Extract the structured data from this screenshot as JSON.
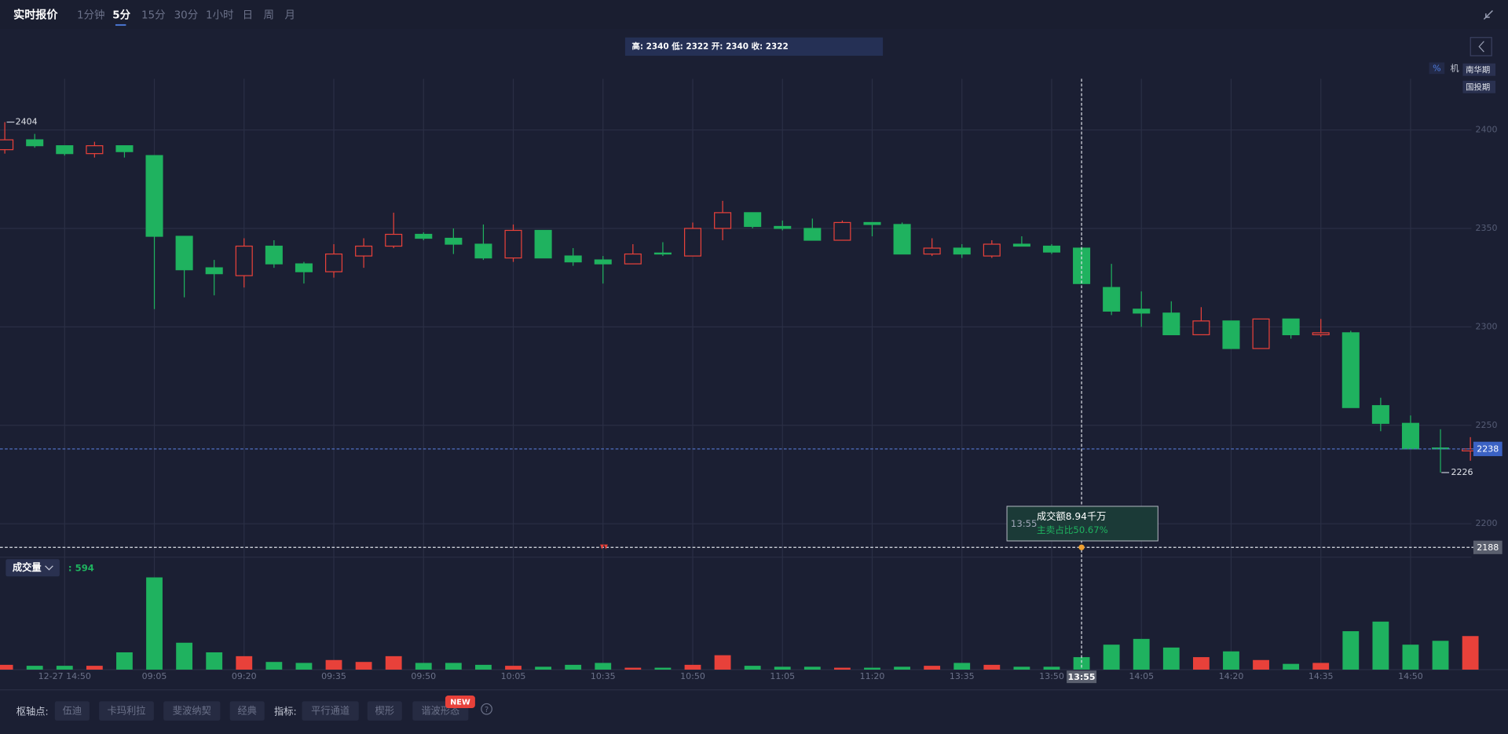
{
  "header": {
    "title": "实时报价",
    "tabs": [
      "1分钟",
      "5分",
      "15分",
      "30分",
      "1小时",
      "日",
      "周",
      "月"
    ],
    "active_tab": 1
  },
  "ohlc_bar": "高: 2340 低: 2322 开: 2340 收: 2322",
  "side": {
    "percent": "%",
    "institution": "机",
    "brokers": [
      "南华期",
      "国投期"
    ]
  },
  "chart_data": {
    "type": "candlestick",
    "categories": [
      null,
      null,
      "12-27 14:50",
      null,
      null,
      "09:05",
      null,
      null,
      "09:20",
      null,
      null,
      "09:35",
      null,
      null,
      "09:50",
      null,
      null,
      "10:05",
      null,
      null,
      "10:35",
      null,
      null,
      "10:50",
      null,
      null,
      "11:05",
      null,
      null,
      "11:20",
      null,
      null,
      "13:35",
      null,
      null,
      "13:50",
      "13:55",
      null,
      "14:05",
      null,
      null,
      "14:20",
      null,
      null,
      "14:35",
      null,
      null,
      "14:50",
      null,
      null
    ],
    "open": [
      2390,
      2395,
      2392,
      2388,
      2392,
      2387,
      2346,
      2330,
      2326,
      2341,
      2332,
      2328,
      2336,
      2341,
      2347,
      2345,
      2342,
      2335,
      2349,
      2336,
      2334,
      2332,
      2337.5,
      2336,
      2350,
      2358,
      2351,
      2350,
      2344,
      2353,
      2352,
      2337,
      2340,
      2336,
      2342,
      2341,
      2340,
      2320,
      2309,
      2307,
      2296,
      2303,
      2289,
      2304,
      2296,
      2297,
      2260,
      2251,
      2238.5,
      2237
    ],
    "high": [
      2404,
      2398,
      2392,
      2394,
      2392,
      2387,
      2346,
      2334,
      2345,
      2344,
      2333,
      2342,
      2345,
      2358,
      2348,
      2350,
      2352,
      2352,
      2349,
      2340,
      2336,
      2342,
      2343,
      2353,
      2364,
      2358,
      2354,
      2355,
      2354,
      2353,
      2353,
      2345,
      2342,
      2344,
      2346,
      2342,
      2340,
      2332,
      2318,
      2313,
      2310,
      2303,
      2304,
      2304,
      2304,
      2298,
      2264,
      2255,
      2248,
      2244
    ],
    "low": [
      2388,
      2391,
      2387,
      2386,
      2386,
      2309,
      2315,
      2316,
      2320,
      2330,
      2322,
      2325,
      2330,
      2340,
      2344,
      2337,
      2334,
      2333,
      2335,
      2331,
      2322,
      2332,
      2336,
      2336,
      2344,
      2350,
      2349,
      2344,
      2344,
      2346,
      2337,
      2336,
      2335,
      2335,
      2341,
      2337,
      2322,
      2306,
      2300,
      2296,
      2296,
      2289,
      2289,
      2294,
      2295,
      2259,
      2247,
      2238,
      2226,
      2232
    ],
    "close": [
      2395,
      2392,
      2388,
      2392,
      2389,
      2346,
      2329,
      2327,
      2341,
      2332,
      2328,
      2337,
      2341,
      2347,
      2345,
      2342,
      2335,
      2349,
      2335,
      2333,
      2332,
      2337,
      2337,
      2350,
      2358,
      2351,
      2350,
      2344,
      2353,
      2352,
      2337,
      2340,
      2337,
      2342,
      2341,
      2338,
      2322,
      2308,
      2307,
      2296,
      2303,
      2289,
      2304,
      2296,
      2297,
      2259,
      2251,
      2238,
      2238,
      2238
    ],
    "volume": [
      85,
      68,
      68,
      68,
      306,
      1632,
      476,
      306,
      238,
      136,
      119,
      170,
      136,
      238,
      119,
      119,
      85,
      68,
      51,
      85,
      119,
      34,
      34,
      85,
      255,
      68,
      51,
      51,
      34,
      34,
      51,
      68,
      119,
      85,
      51,
      51,
      221,
      442,
      544,
      391,
      221,
      323,
      170,
      102,
      119,
      680,
      850,
      442,
      510,
      594
    ],
    "ylim": [
      2183,
      2426
    ],
    "yticks": [
      2200,
      2250,
      2300,
      2350,
      2400
    ],
    "volume_ylim": [
      0,
      1819
    ],
    "grid": true,
    "up_color": "#e8413a",
    "down_color": "#1fb25f",
    "last_price": 2238,
    "max_label": 2404,
    "min_label": 2226,
    "crosshair": {
      "time": "13:55",
      "price": 2188
    }
  },
  "tooltip": {
    "time": "13:55",
    "amount": "成交额8.94千万",
    "sell_ratio": "主卖占比50.67%"
  },
  "volume_header": {
    "label": "成交量",
    "value": ": 594"
  },
  "footer": {
    "pivot_label": "枢轴点:",
    "pivots": [
      "伍迪",
      "卡玛利拉",
      "斐波纳契",
      "经典"
    ],
    "indicator_label": "指标:",
    "indicators": [
      "平行通道",
      "楔形",
      "谐波形态"
    ],
    "badge": "NEW",
    "help": "?"
  }
}
